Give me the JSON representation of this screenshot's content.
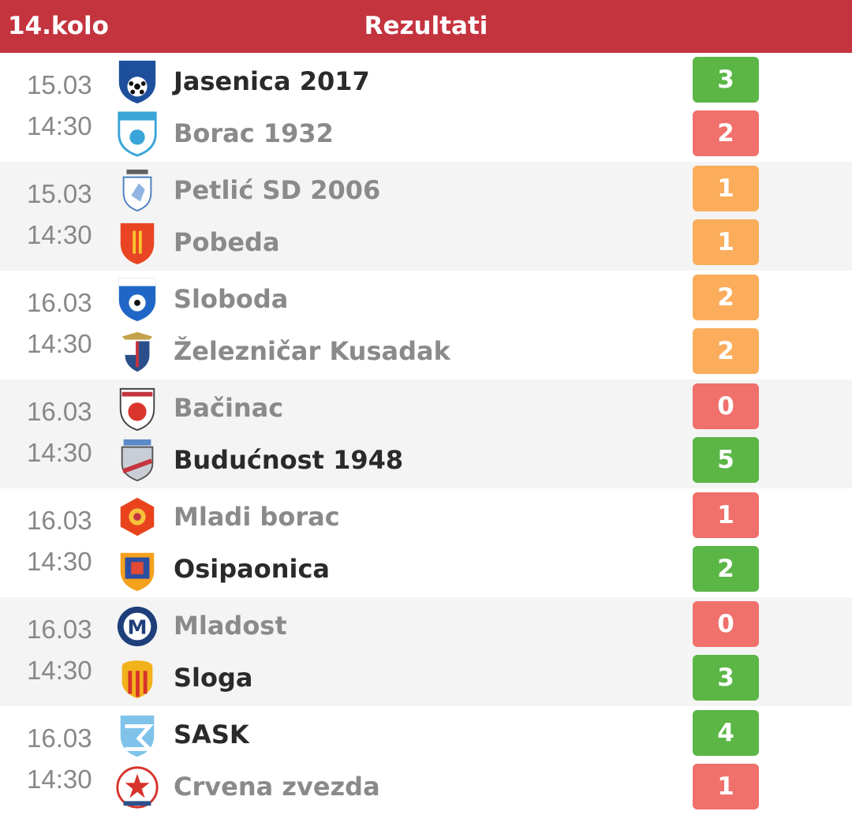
{
  "header": {
    "round": "14.kolo",
    "title": "Rezultati"
  },
  "colors": {
    "header": "#c4343f",
    "win": "#5bb646",
    "loss": "#f0706c",
    "draw": "#fbad5c"
  },
  "matches": [
    {
      "date": "15.03",
      "time": "14:30",
      "home": {
        "name": "Jasenica 2017",
        "score": "3",
        "logo": "jasenica-2017-crest"
      },
      "away": {
        "name": "Borac 1932",
        "score": "2",
        "logo": "borac-1932-crest"
      }
    },
    {
      "date": "15.03",
      "time": "14:30",
      "home": {
        "name": "Petlić SD 2006",
        "score": "1",
        "logo": "petlic-sd-2006-crest"
      },
      "away": {
        "name": "Pobeda",
        "score": "1",
        "logo": "pobeda-crest"
      }
    },
    {
      "date": "16.03",
      "time": "14:30",
      "home": {
        "name": "Sloboda",
        "score": "2",
        "logo": "sloboda-crest"
      },
      "away": {
        "name": "Železničar Kusadak",
        "score": "2",
        "logo": "zeleznicar-kusadak-crest"
      }
    },
    {
      "date": "16.03",
      "time": "14:30",
      "home": {
        "name": "Bačinac",
        "score": "0",
        "logo": "bacinac-crest"
      },
      "away": {
        "name": "Budućnost 1948",
        "score": "5",
        "logo": "buducnost-1948-crest"
      }
    },
    {
      "date": "16.03",
      "time": "14:30",
      "home": {
        "name": "Mladi borac",
        "score": "1",
        "logo": "mladi-borac-crest"
      },
      "away": {
        "name": "Osipaonica",
        "score": "2",
        "logo": "osipaonica-crest"
      }
    },
    {
      "date": "16.03",
      "time": "14:30",
      "home": {
        "name": "Mladost",
        "score": "0",
        "logo": "mladost-crest"
      },
      "away": {
        "name": "Sloga",
        "score": "3",
        "logo": "sloga-crest"
      }
    },
    {
      "date": "16.03",
      "time": "14:30",
      "home": {
        "name": "SASK",
        "score": "4",
        "logo": "sask-crest"
      },
      "away": {
        "name": "Crvena zvezda",
        "score": "1",
        "logo": "crvena-zvezda-crest"
      }
    }
  ]
}
